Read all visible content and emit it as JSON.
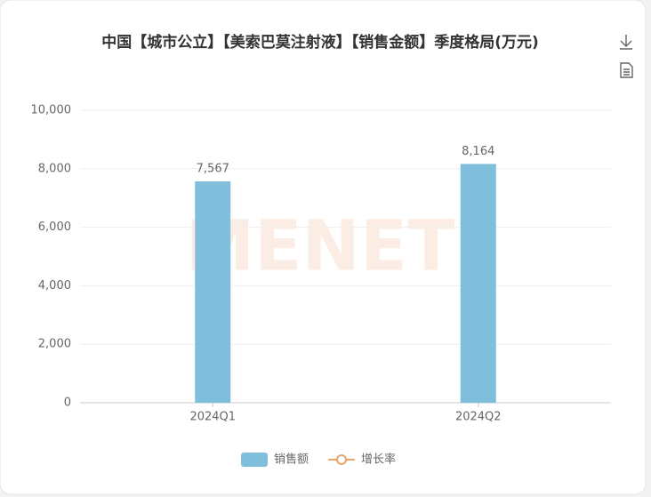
{
  "chart_data": {
    "type": "bar",
    "title": "中国【城市公立】【美索巴莫注射液】【销售金额】季度格局(万元)",
    "categories": [
      "2024Q1",
      "2024Q2"
    ],
    "series": [
      {
        "name": "销售额",
        "color": "#7fbfdc",
        "type": "bar",
        "values": [
          7567,
          8164
        ],
        "value_labels": [
          "7,567",
          "8,164"
        ]
      },
      {
        "name": "增长率",
        "color": "#e8a66b",
        "type": "line",
        "values": [
          null,
          null
        ]
      }
    ],
    "ylim": [
      0,
      10000
    ],
    "yticks": [
      0,
      {
        "value": 2000,
        "label": "2,000"
      },
      {
        "value": 4000,
        "label": "4,000"
      },
      {
        "value": 6000,
        "label": "6,000"
      },
      {
        "value": 8000,
        "label": "8,000"
      },
      {
        "value": 10000,
        "label": "10,000"
      }
    ],
    "grid": true,
    "legend": "bottom",
    "watermark": "MENET"
  }
}
